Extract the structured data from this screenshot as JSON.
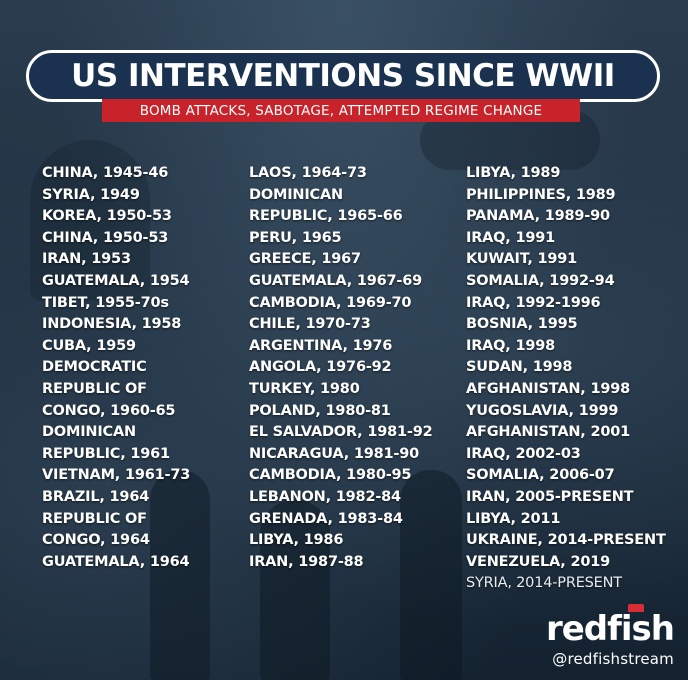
{
  "poster": {
    "title": "US INTERVENTIONS SINCE WWII",
    "subtitle": "BOMB ATTACKS, SABOTAGE, ATTEMPTED REGIME CHANGE",
    "columns": [
      [
        "CHINA, 1945-46",
        "SYRIA, 1949",
        "KOREA, 1950-53",
        "CHINA, 1950-53",
        "IRAN, 1953",
        "GUATEMALA, 1954",
        "TIBET, 1955-70s",
        "INDONESIA, 1958",
        "CUBA, 1959",
        "DEMOCRATIC",
        "REPUBLIC OF",
        "CONGO, 1960-65",
        "DOMINICAN",
        "REPUBLIC, 1961",
        "VIETNAM, 1961-73",
        "BRAZIL, 1964",
        "REPUBLIC OF",
        "CONGO, 1964",
        "GUATEMALA, 1964"
      ],
      [
        "LAOS, 1964-73",
        "DOMINICAN",
        "REPUBLIC, 1965-66",
        "PERU, 1965",
        "GREECE, 1967",
        "GUATEMALA, 1967-69",
        "CAMBODIA, 1969-70",
        "CHILE, 1970-73",
        "ARGENTINA, 1976",
        "ANGOLA, 1976-92",
        "TURKEY, 1980",
        "POLAND, 1980-81",
        "EL SALVADOR, 1981-92",
        "NICARAGUA, 1981-90",
        "CAMBODIA, 1980-95",
        "LEBANON, 1982-84",
        "GRENADA, 1983-84",
        "LIBYA, 1986",
        "IRAN, 1987-88"
      ],
      [
        "LIBYA, 1989",
        "PHILIPPINES, 1989",
        "PANAMA, 1989-90",
        "IRAQ, 1991",
        "KUWAIT, 1991",
        "SOMALIA, 1992-94",
        "IRAQ, 1992-1996",
        "BOSNIA, 1995",
        "IRAQ, 1998",
        "SUDAN, 1998",
        "AFGHANISTAN, 1998",
        "YUGOSLAVIA, 1999",
        "AFGHANISTAN, 2001",
        "IRAQ, 2002-03",
        "SOMALIA, 2006-07",
        "IRAN, 2005-PRESENT",
        "LIBYA, 2011",
        "UKRAINE, 2014-PRESENT",
        "VENEZUELA, 2019",
        "SYRIA, 2014-PRESENT"
      ]
    ]
  },
  "brand": {
    "name": "redfish",
    "handle": "@redfishstream",
    "icon": "graduation-cap-icon",
    "accent_color": "#d62e35"
  },
  "colors": {
    "title_bg": "#1a3250",
    "subtitle_bg": "#c8232a",
    "text": "#ffffff"
  }
}
